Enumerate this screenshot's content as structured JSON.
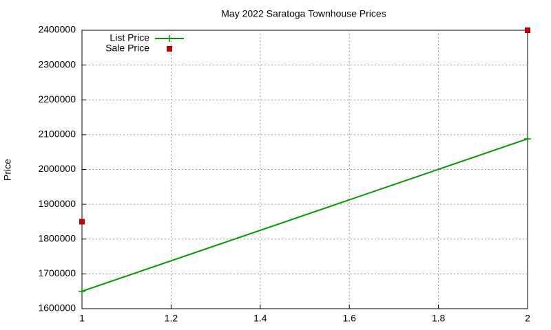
{
  "chart_data": {
    "type": "line",
    "title": "May 2022 Saratoga Townhouse Prices",
    "y_label": "Price",
    "x": [
      1,
      2
    ],
    "series": [
      {
        "name": "List Price",
        "color": "#009900",
        "style": "linespoints",
        "values": [
          1650000,
          2088000
        ]
      },
      {
        "name": "Sale Price",
        "color": "#c00000",
        "style": "points",
        "values": [
          1850000,
          2400000
        ]
      }
    ],
    "xlim": [
      1,
      2
    ],
    "xticks": [
      1,
      1.2,
      1.4,
      1.6,
      1.8,
      2
    ],
    "ylim": [
      1600000,
      2400000
    ],
    "yticks": [
      1600000,
      1700000,
      1800000,
      1900000,
      2000000,
      2100000,
      2200000,
      2300000,
      2400000
    ],
    "grid": true,
    "legend": "top-left"
  }
}
